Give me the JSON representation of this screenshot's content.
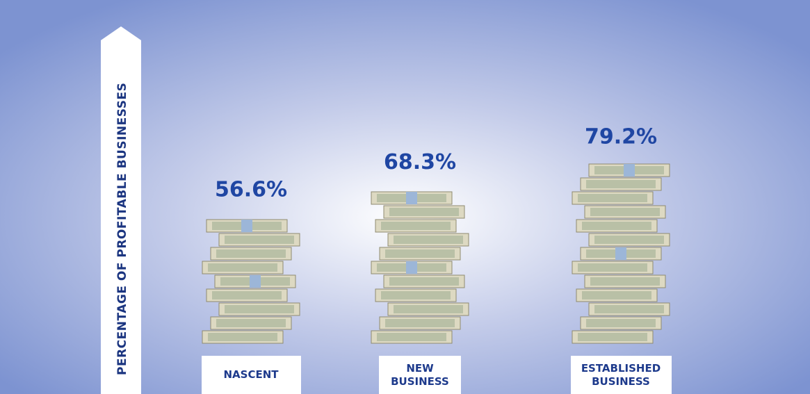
{
  "chart_data": {
    "type": "bar",
    "y_label": "PERCENTAGE OF PROFITABLE BUSINESSES",
    "categories": [
      "NASCENT",
      "NEW BUSINESS",
      "ESTABLISHED BUSINESS"
    ],
    "values": [
      56.6,
      68.3,
      79.2
    ],
    "value_labels": [
      "56.6%",
      "68.3%",
      "79.2%"
    ]
  }
}
